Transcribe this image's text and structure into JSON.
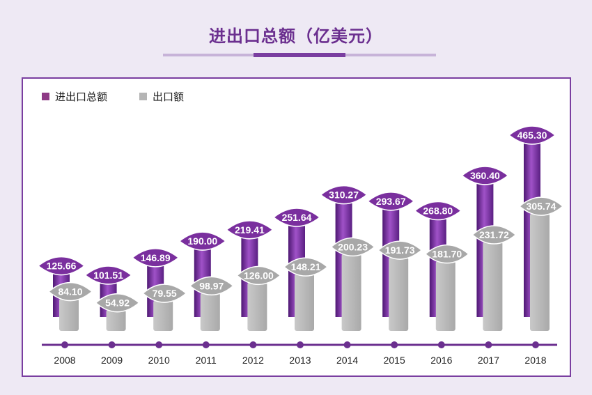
{
  "title": "进出口总额（亿美元）",
  "colors": {
    "total": "#7b2d9e",
    "export": "#bdbdbd",
    "accent": "#7a3ea0"
  },
  "legend": {
    "total_label": "进出口总额",
    "export_label": "出口额"
  },
  "chart_data": {
    "type": "bar",
    "categories": [
      "2008",
      "2009",
      "2010",
      "2011",
      "2012",
      "2013",
      "2014",
      "2015",
      "2016",
      "2017",
      "2018"
    ],
    "series": [
      {
        "name": "进出口总额",
        "values": [
          125.66,
          101.51,
          146.89,
          190.0,
          219.41,
          251.64,
          310.27,
          293.67,
          268.8,
          360.4,
          465.3
        ],
        "labels": [
          "125.66",
          "101.51",
          "146.89",
          "190.00",
          "219.41",
          "251.64",
          "310.27",
          "293.67",
          "268.80",
          "360.40",
          "465.30"
        ]
      },
      {
        "name": "出口额",
        "values": [
          84.1,
          54.92,
          79.55,
          98.97,
          126.0,
          148.21,
          200.23,
          191.73,
          181.7,
          231.72,
          305.74
        ],
        "labels": [
          "84.10",
          "54.92",
          "79.55",
          "98.97",
          "126.00",
          "148.21",
          "200.23",
          "191.73",
          "181.70",
          "231.72",
          "305.74"
        ]
      }
    ],
    "title": "进出口总额（亿美元）",
    "xlabel": "",
    "ylabel": "",
    "ylim": [
      0,
      465.3
    ],
    "grid": false,
    "legend_position": "top-left"
  }
}
